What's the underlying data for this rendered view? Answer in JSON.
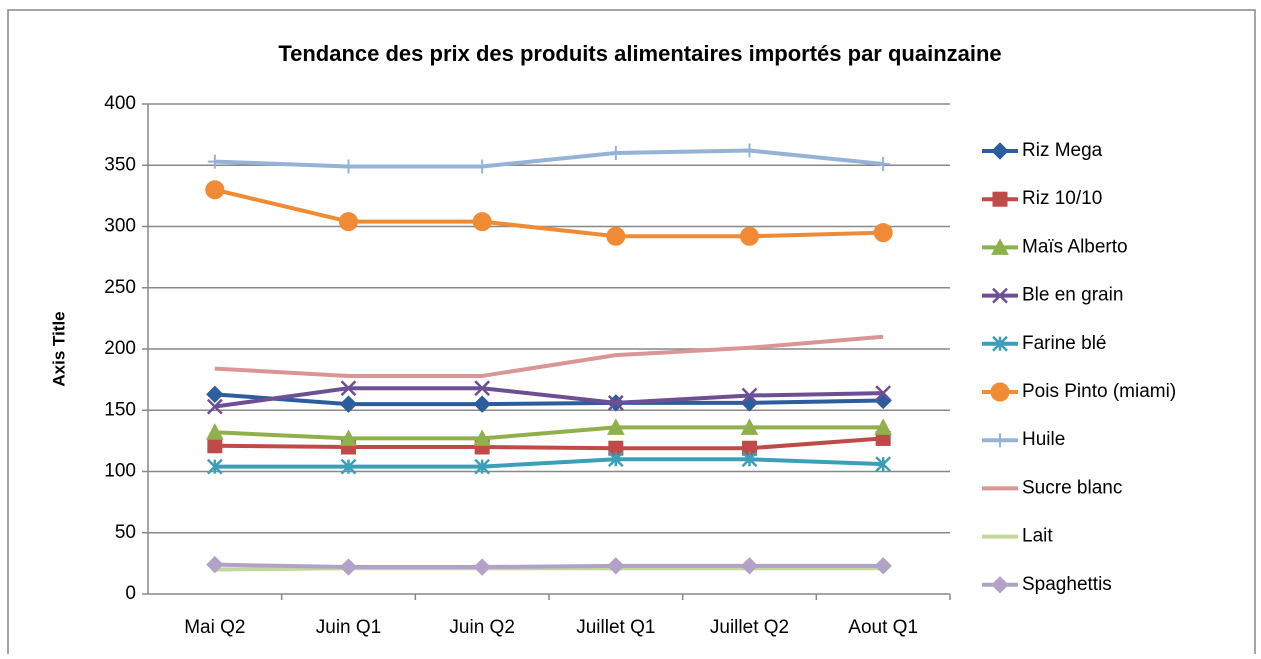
{
  "chart_data": {
    "type": "line",
    "title": "Tendance des prix des produits alimentaires importés par quainzaine",
    "y_label": "Axis Title",
    "categories": [
      "Mai Q2",
      "Juin Q1",
      "Juin Q2",
      "Juillet Q1",
      "Juillet Q2",
      "Aout Q1"
    ],
    "ylim": [
      0,
      400
    ],
    "yticks": [
      0,
      50,
      100,
      150,
      200,
      250,
      300,
      350,
      400
    ],
    "grid": true,
    "legend": "right",
    "series": [
      {
        "name": "Riz Mega",
        "color": "#2c5d9c",
        "marker": "diamond",
        "values": [
          163,
          155,
          155,
          156,
          156,
          158
        ]
      },
      {
        "name": "Riz 10/10",
        "color": "#be4b48",
        "marker": "square",
        "values": [
          121,
          120,
          120,
          119,
          119,
          127
        ]
      },
      {
        "name": "Maïs Alberto",
        "color": "#8fb04a",
        "marker": "triangle",
        "values": [
          132,
          127,
          127,
          136,
          136,
          136
        ]
      },
      {
        "name": "Ble en grain",
        "color": "#6d4f94",
        "marker": "x",
        "values": [
          153,
          168,
          168,
          156,
          162,
          164
        ]
      },
      {
        "name": "Farine blé",
        "color": "#3b9fb8",
        "marker": "star",
        "values": [
          104,
          104,
          104,
          110,
          110,
          106
        ]
      },
      {
        "name": "Pois Pinto (miami)",
        "color": "#f08a35",
        "marker": "circle",
        "values": [
          330,
          304,
          304,
          292,
          292,
          295
        ]
      },
      {
        "name": "Huile",
        "color": "#95b3d7",
        "marker": "plus",
        "values": [
          353,
          349,
          349,
          360,
          362,
          351
        ]
      },
      {
        "name": "Sucre blanc",
        "color": "#d99694",
        "marker": "none",
        "values": [
          184,
          178,
          178,
          195,
          201,
          210
        ]
      },
      {
        "name": "Lait",
        "color": "#c3d69b",
        "marker": "none",
        "values": [
          20,
          21,
          21,
          21,
          21,
          21
        ]
      },
      {
        "name": "Spaghettis",
        "color": "#b3a2c7",
        "marker": "diamond",
        "values": [
          24,
          22,
          22,
          23,
          23,
          23
        ]
      }
    ]
  }
}
